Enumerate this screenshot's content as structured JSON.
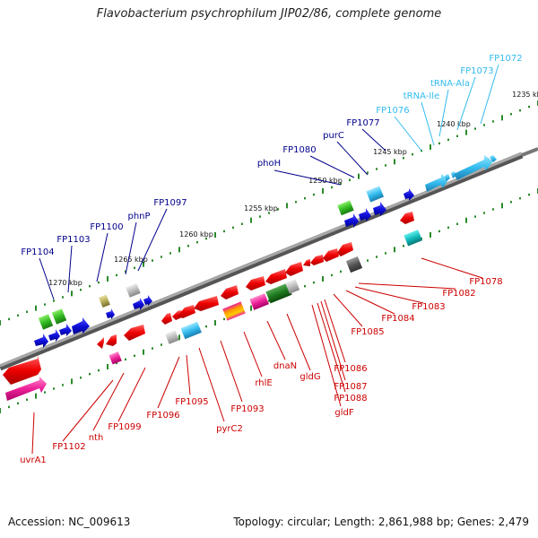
{
  "title": "Flavobacterium psychrophilum JIP02/86, complete genome",
  "footer": {
    "accession": "Accession: NC_009613",
    "summary": "Topology: circular; Length: 2,861,988 bp; Genes: 2,479"
  },
  "scale_ticks": [
    {
      "label": "1235 kbp"
    },
    {
      "label": "1240 kbp"
    },
    {
      "label": "1245 kbp"
    },
    {
      "label": "1250 kbp"
    },
    {
      "label": "1255 kbp"
    },
    {
      "label": "1260 kbp"
    },
    {
      "label": "1265 kbp"
    },
    {
      "label": "1270 kbp"
    }
  ],
  "gene_labels_top": [
    {
      "label": "FP1072",
      "color": "#33bbee"
    },
    {
      "label": "FP1073",
      "color": "#33bbee"
    },
    {
      "label": "tRNA-Ala",
      "color": "#33bbee"
    },
    {
      "label": "tRNA-Ile",
      "color": "#33bbee"
    },
    {
      "label": "FP1076",
      "color": "#33bbee"
    },
    {
      "label": "FP1077",
      "color": "#00008b"
    },
    {
      "label": "purC",
      "color": "#00008b"
    },
    {
      "label": "FP1080",
      "color": "#00008b"
    },
    {
      "label": "phoH",
      "color": "#00008b"
    },
    {
      "label": "FP1097",
      "color": "#00008b"
    },
    {
      "label": "phnP",
      "color": "#00008b"
    },
    {
      "label": "FP1100",
      "color": "#00008b"
    },
    {
      "label": "FP1103",
      "color": "#00008b"
    },
    {
      "label": "FP1104",
      "color": "#00008b"
    }
  ],
  "gene_labels_bottom": [
    {
      "label": "FP1078",
      "color": "#cc0000"
    },
    {
      "label": "FP1082",
      "color": "#cc0000"
    },
    {
      "label": "FP1083",
      "color": "#cc0000"
    },
    {
      "label": "FP1084",
      "color": "#cc0000"
    },
    {
      "label": "FP1085",
      "color": "#cc0000"
    },
    {
      "label": "FP1086",
      "color": "#cc0000"
    },
    {
      "label": "FP1087",
      "color": "#cc0000"
    },
    {
      "label": "FP1088",
      "color": "#cc0000"
    },
    {
      "label": "gldF",
      "color": "#cc0000"
    },
    {
      "label": "gldG",
      "color": "#cc0000"
    },
    {
      "label": "dnaN",
      "color": "#cc0000"
    },
    {
      "label": "rhlE",
      "color": "#cc0000"
    },
    {
      "label": "FP1093",
      "color": "#cc0000"
    },
    {
      "label": "pyrC2",
      "color": "#cc0000"
    },
    {
      "label": "FP1095",
      "color": "#cc0000"
    },
    {
      "label": "FP1096",
      "color": "#cc0000"
    },
    {
      "label": "FP1099",
      "color": "#cc0000"
    },
    {
      "label": "nth",
      "color": "#cc0000"
    },
    {
      "label": "FP1102",
      "color": "#cc0000"
    },
    {
      "label": "uvrA1",
      "color": "#cc0000"
    }
  ],
  "colors": {
    "backbone": "#808080",
    "tick_green": "#2a8a2a",
    "forward_blue": "#1010dd",
    "reverse_red": "#ee1111",
    "trna_cyan": "#33bbee"
  }
}
